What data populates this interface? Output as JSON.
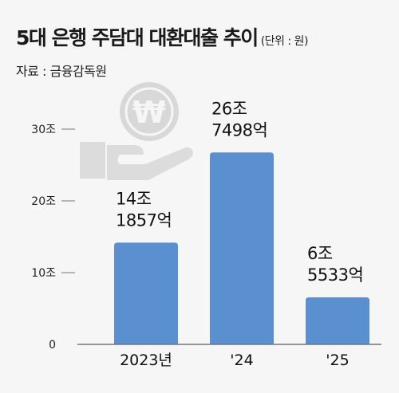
{
  "header": {
    "title": "5대 은행 주담대 대환대출 추이",
    "unit": "(단위 : 원)",
    "source": "자료 : 금융감독원"
  },
  "icon": {
    "name": "won-coin-hand-icon",
    "color": "#d6d6d6"
  },
  "colors": {
    "bar": "#5a8fd0",
    "bar_top": "#4a7fc2",
    "axis": "#777777"
  },
  "chart_data": {
    "type": "bar",
    "title": "5대 은행 주담대 대환대출 추이",
    "categories": [
      "2023년",
      "'24",
      "'25"
    ],
    "values": [
      141857,
      267498,
      65533
    ],
    "value_labels": [
      [
        "14조",
        "1857억"
      ],
      [
        "26조",
        "7498억"
      ],
      [
        "6조",
        "5533억"
      ]
    ],
    "y_ticks": [
      0,
      100000,
      200000,
      300000
    ],
    "y_tick_labels": [
      "0",
      "10조",
      "20조",
      "30조"
    ],
    "ylim": [
      0,
      300000
    ],
    "unit": "억원",
    "grid": false
  }
}
